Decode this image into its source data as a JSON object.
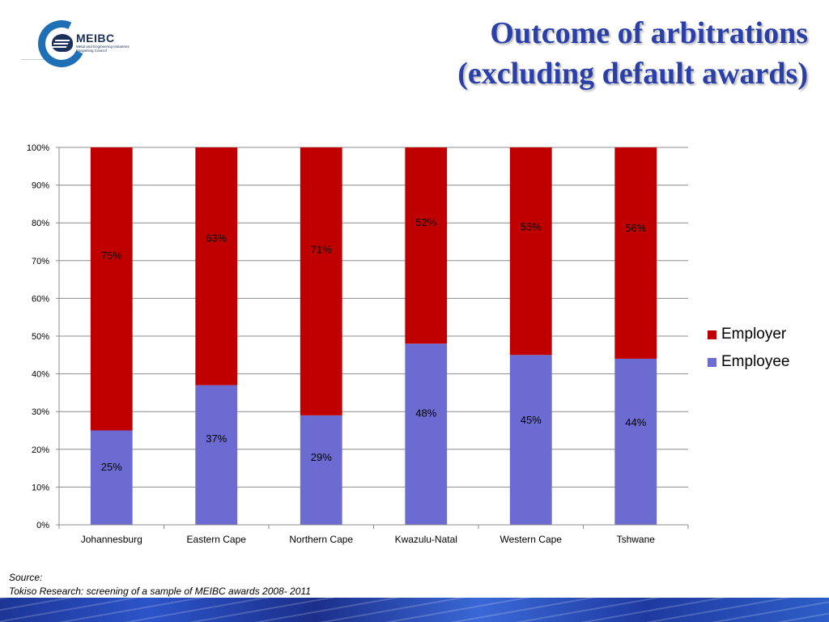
{
  "logo": {
    "name": "MEIBC",
    "subtitle": "Metal and Engineering Industries Bargaining Council"
  },
  "title": {
    "line1": "Outcome of arbitrations",
    "line2": "(excluding default awards)"
  },
  "source": {
    "label": "Source:",
    "text": "Tokiso Research: screening of a sample of MEIBC awards 2008- 2011"
  },
  "colors": {
    "employer": "#c00000",
    "employee": "#6b6bd1",
    "title": "#2a3fa8",
    "grid": "#8c8c8c"
  },
  "chart_data": {
    "type": "bar",
    "stacked": true,
    "categories": [
      "Johannesburg",
      "Eastern Cape",
      "Northern Cape",
      "Kwazulu-Natal",
      "Western Cape",
      "Tshwane"
    ],
    "series": [
      {
        "name": "Employee",
        "values": [
          25,
          37,
          29,
          48,
          45,
          44
        ],
        "labels": [
          "25%",
          "37%",
          "29%",
          "48%",
          "45%",
          "44%"
        ],
        "color": "#6b6bd1"
      },
      {
        "name": "Employer",
        "values": [
          75,
          63,
          71,
          52,
          55,
          56
        ],
        "labels": [
          "75%",
          "63%",
          "71%",
          "52%",
          "55%",
          "56%"
        ],
        "color": "#c00000"
      }
    ],
    "ylim": [
      0,
      100
    ],
    "yticks": [
      "0%",
      "10%",
      "20%",
      "30%",
      "40%",
      "50%",
      "60%",
      "70%",
      "80%",
      "90%",
      "100%"
    ],
    "grid": true,
    "legend": "right",
    "legend_order": [
      "Employer",
      "Employee"
    ]
  }
}
